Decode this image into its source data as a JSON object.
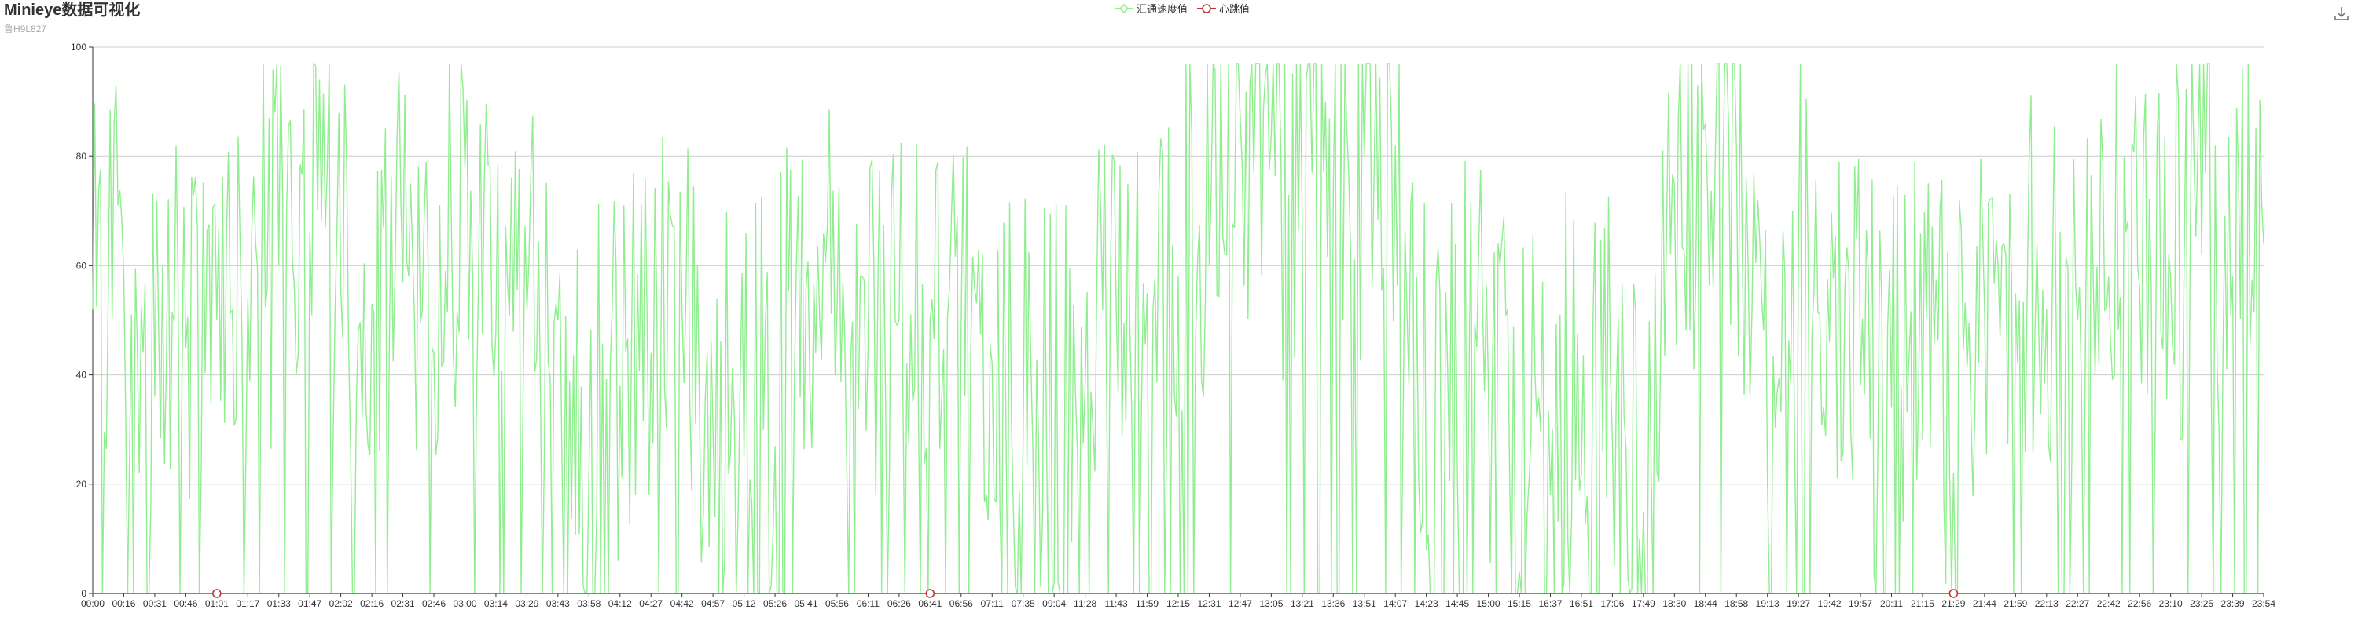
{
  "header": {
    "title": "Minieye数据可视化",
    "subtitle": "鲁H9L827"
  },
  "legend": {
    "items": [
      {
        "label": "汇通速度值",
        "color": "#90ee90",
        "marker": "diamond-outline"
      },
      {
        "label": "心跳值",
        "color": "#c23531",
        "marker": "circle-outline"
      }
    ]
  },
  "toolbar": {
    "download_icon": "download-icon"
  },
  "chart_data": {
    "type": "line",
    "title": "Minieye数据可视化",
    "subtitle": "鲁H9L827",
    "xlabel": "",
    "ylabel": "",
    "ylim": [
      0,
      100
    ],
    "y_ticks": [
      0,
      20,
      40,
      60,
      80,
      100
    ],
    "grid": true,
    "legend_position": "top-center",
    "x_tick_labels": [
      "00:00",
      "00:16",
      "00:31",
      "00:46",
      "01:01",
      "01:17",
      "01:33",
      "01:47",
      "02:02",
      "02:16",
      "02:31",
      "02:46",
      "03:00",
      "03:14",
      "03:29",
      "03:43",
      "03:58",
      "04:12",
      "04:27",
      "04:42",
      "04:57",
      "05:12",
      "05:26",
      "05:41",
      "05:56",
      "06:11",
      "06:26",
      "06:41",
      "06:56",
      "07:11",
      "07:35",
      "09:04",
      "11:28",
      "11:43",
      "11:59",
      "12:15",
      "12:31",
      "12:47",
      "13:05",
      "13:21",
      "13:36",
      "13:51",
      "14:07",
      "14:23",
      "14:45",
      "15:00",
      "15:15",
      "16:37",
      "16:51",
      "17:06",
      "17:49",
      "18:30",
      "18:44",
      "18:58",
      "19:13",
      "19:27",
      "19:42",
      "19:57",
      "20:11",
      "21:15",
      "21:29",
      "21:44",
      "21:59",
      "22:13",
      "22:27",
      "22:42",
      "22:56",
      "23:10",
      "23:25",
      "23:39",
      "23:54"
    ],
    "series": [
      {
        "name": "汇通速度值",
        "color": "#90ee90",
        "x": [
          "00:00",
          "00:16",
          "00:31",
          "00:46",
          "01:01",
          "01:17",
          "01:33",
          "01:47",
          "02:02",
          "02:16",
          "02:31",
          "02:46",
          "03:00",
          "03:14",
          "03:29",
          "03:43",
          "03:58",
          "04:12",
          "04:27",
          "04:42",
          "04:57",
          "05:12",
          "05:26",
          "05:41",
          "05:56",
          "06:11",
          "06:26",
          "06:41",
          "06:56",
          "07:11",
          "07:35",
          "09:04",
          "11:28",
          "11:43",
          "11:59",
          "12:15",
          "12:31",
          "12:47",
          "13:05",
          "13:21",
          "13:36",
          "13:51",
          "14:07",
          "14:23",
          "14:45",
          "15:00",
          "15:15",
          "16:37",
          "16:51",
          "17:06",
          "17:49",
          "18:30",
          "18:44",
          "18:58",
          "19:13",
          "19:27",
          "19:42",
          "19:57",
          "20:11",
          "21:15",
          "21:29",
          "21:44",
          "21:59",
          "22:13",
          "22:27",
          "22:42",
          "22:56",
          "23:10",
          "23:25",
          "23:39",
          "23:54"
        ],
        "values": [
          52,
          58,
          36,
          45,
          50,
          54,
          60,
          66,
          55,
          53,
          57,
          44,
          78,
          48,
          52,
          50,
          22,
          38,
          44,
          52,
          30,
          25,
          27,
          56,
          52,
          45,
          50,
          50,
          48,
          42,
          28,
          2,
          38,
          52,
          55,
          58,
          60,
          87,
          84,
          68,
          74,
          80,
          82,
          8,
          22,
          38,
          4,
          18,
          22,
          28,
          15,
          75,
          86,
          82,
          20,
          62,
          46,
          38,
          34,
          28,
          22,
          52,
          55,
          52,
          50,
          58,
          56,
          58,
          62,
          58,
          64
        ]
      },
      {
        "name": "心跳值",
        "color": "#c23531",
        "x": [
          "01:01",
          "06:41",
          "21:29"
        ],
        "values": [
          0,
          0,
          0
        ]
      }
    ]
  }
}
